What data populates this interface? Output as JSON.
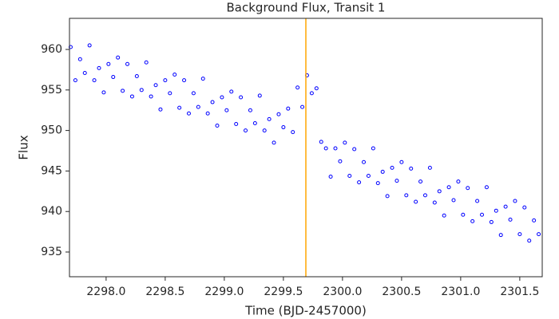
{
  "chart_data": {
    "type": "scatter",
    "title": "Background Flux, Transit 1",
    "xlabel": "Time (BJD-2457000)",
    "ylabel": "Flux",
    "xlim": [
      2297.69,
      2301.69
    ],
    "ylim": [
      931.95,
      963.84
    ],
    "xticks": [
      {
        "value": 2298.0,
        "label": "2298.0"
      },
      {
        "value": 2298.5,
        "label": "2298.5"
      },
      {
        "value": 2299.0,
        "label": "2299.0"
      },
      {
        "value": 2299.5,
        "label": "2299.5"
      },
      {
        "value": 2300.0,
        "label": "2300.0"
      },
      {
        "value": 2300.5,
        "label": "2300.5"
      },
      {
        "value": 2301.0,
        "label": "2301.0"
      },
      {
        "value": 2301.5,
        "label": "2301.5"
      }
    ],
    "yticks": [
      935,
      940,
      945,
      950,
      955,
      960
    ],
    "grid": false,
    "vline": {
      "x": 2299.69,
      "color": "#ffa500"
    },
    "series": [
      {
        "color": "#0000ff",
        "x": [
          2297.7,
          2297.74,
          2297.78,
          2297.82,
          2297.86,
          2297.9,
          2297.94,
          2297.98,
          2298.02,
          2298.06,
          2298.1,
          2298.14,
          2298.18,
          2298.22,
          2298.26,
          2298.3,
          2298.34,
          2298.38,
          2298.42,
          2298.46,
          2298.5,
          2298.54,
          2298.58,
          2298.62,
          2298.66,
          2298.7,
          2298.74,
          2298.78,
          2298.82,
          2298.86,
          2298.9,
          2298.94,
          2298.98,
          2299.02,
          2299.06,
          2299.1,
          2299.14,
          2299.18,
          2299.22,
          2299.26,
          2299.3,
          2299.34,
          2299.38,
          2299.42,
          2299.46,
          2299.5,
          2299.54,
          2299.58,
          2299.62,
          2299.66,
          2299.7,
          2299.74,
          2299.78,
          2299.82,
          2299.86,
          2299.9,
          2299.94,
          2299.98,
          2300.02,
          2300.06,
          2300.1,
          2300.14,
          2300.18,
          2300.22,
          2300.26,
          2300.3,
          2300.34,
          2300.38,
          2300.42,
          2300.46,
          2300.5,
          2300.54,
          2300.58,
          2300.62,
          2300.66,
          2300.7,
          2300.74,
          2300.78,
          2300.82,
          2300.86,
          2300.9,
          2300.94,
          2300.98,
          2301.02,
          2301.06,
          2301.1,
          2301.14,
          2301.18,
          2301.22,
          2301.26,
          2301.3,
          2301.34,
          2301.38,
          2301.42,
          2301.46,
          2301.5,
          2301.54,
          2301.58,
          2301.62,
          2301.66
        ],
        "values": [
          960.3,
          956.2,
          958.8,
          957.1,
          960.5,
          956.2,
          957.7,
          954.7,
          958.2,
          956.6,
          959.0,
          954.9,
          958.2,
          954.2,
          956.7,
          955.0,
          958.4,
          954.2,
          955.6,
          952.6,
          956.2,
          954.6,
          956.9,
          952.8,
          956.2,
          952.1,
          954.6,
          952.9,
          956.4,
          952.1,
          953.5,
          950.6,
          954.1,
          952.5,
          954.8,
          950.8,
          954.1,
          950.0,
          952.5,
          950.9,
          954.3,
          950.0,
          951.4,
          948.5,
          952.0,
          950.4,
          952.7,
          949.8,
          955.3,
          952.9,
          956.8,
          954.6,
          955.2,
          948.6,
          947.8,
          944.3,
          947.8,
          946.2,
          948.5,
          944.4,
          947.7,
          943.6,
          946.1,
          944.4,
          947.8,
          943.5,
          944.9,
          941.9,
          945.4,
          943.8,
          946.1,
          942.0,
          945.3,
          941.2,
          943.7,
          942.0,
          945.4,
          941.1,
          942.5,
          939.5,
          943.0,
          941.4,
          943.7,
          939.6,
          942.9,
          938.8,
          941.3,
          939.6,
          943.0,
          938.7,
          940.1,
          937.1,
          940.6,
          939.0,
          941.3,
          937.2,
          940.5,
          936.4,
          938.9,
          937.2
        ]
      }
    ]
  }
}
